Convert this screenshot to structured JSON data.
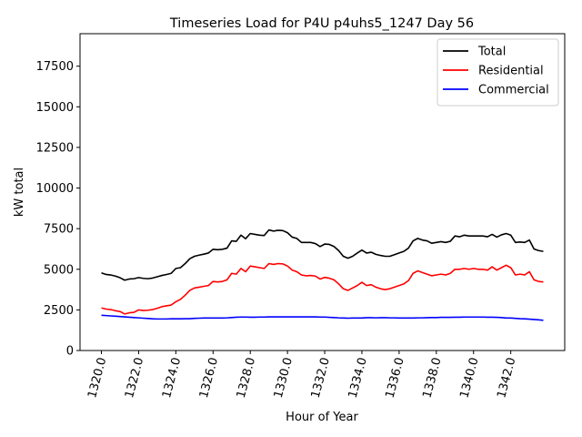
{
  "chart_data": {
    "type": "line",
    "title": "Timeseries Load for P4U p4uhs5_1247  Day 56",
    "xlabel": "Hour of Year",
    "ylabel": "kW total",
    "xlim": [
      1318.85,
      1344.9
    ],
    "ylim": [
      0,
      19500
    ],
    "xticks": [
      1320,
      1322,
      1324,
      1326,
      1328,
      1330,
      1332,
      1334,
      1336,
      1338,
      1340,
      1342
    ],
    "xtick_labels": [
      "1320.0",
      "1322.0",
      "1324.0",
      "1326.0",
      "1328.0",
      "1330.0",
      "1332.0",
      "1334.0",
      "1336.0",
      "1338.0",
      "1340.0",
      "1342.0"
    ],
    "yticks": [
      0,
      2500,
      5000,
      7500,
      10000,
      12500,
      15000,
      17500
    ],
    "ytick_labels": [
      "0",
      "2500",
      "5000",
      "7500",
      "10000",
      "12500",
      "15000",
      "17500"
    ],
    "legend_position": "upper right",
    "x": [
      1320.0,
      1320.25,
      1320.5,
      1320.75,
      1321.0,
      1321.25,
      1321.5,
      1321.75,
      1322.0,
      1322.25,
      1322.5,
      1322.75,
      1323.0,
      1323.25,
      1323.5,
      1323.75,
      1324.0,
      1324.25,
      1324.5,
      1324.75,
      1325.0,
      1325.25,
      1325.5,
      1325.75,
      1326.0,
      1326.25,
      1326.5,
      1326.75,
      1327.0,
      1327.25,
      1327.5,
      1327.75,
      1328.0,
      1328.25,
      1328.5,
      1328.75,
      1329.0,
      1329.25,
      1329.5,
      1329.75,
      1330.0,
      1330.25,
      1330.5,
      1330.75,
      1331.0,
      1331.25,
      1331.5,
      1331.75,
      1332.0,
      1332.25,
      1332.5,
      1332.75,
      1333.0,
      1333.25,
      1333.5,
      1333.75,
      1334.0,
      1334.25,
      1334.5,
      1334.75,
      1335.0,
      1335.25,
      1335.5,
      1335.75,
      1336.0,
      1336.25,
      1336.5,
      1336.75,
      1337.0,
      1337.25,
      1337.5,
      1337.75,
      1338.0,
      1338.25,
      1338.5,
      1338.75,
      1339.0,
      1339.25,
      1339.5,
      1339.75,
      1340.0,
      1340.25,
      1340.5,
      1340.75,
      1341.0,
      1341.25,
      1341.5,
      1341.75,
      1342.0,
      1342.25,
      1342.5,
      1342.75,
      1343.0,
      1343.25,
      1343.5,
      1343.75
    ],
    "series": [
      {
        "name": "Total",
        "color": "#000000",
        "values": [
          4780,
          4680,
          4650,
          4580,
          4480,
          4330,
          4400,
          4420,
          4490,
          4440,
          4420,
          4460,
          4540,
          4620,
          4680,
          4750,
          5050,
          5100,
          5350,
          5650,
          5800,
          5870,
          5930,
          6000,
          6230,
          6200,
          6230,
          6300,
          6750,
          6720,
          7100,
          6880,
          7200,
          7150,
          7100,
          7080,
          7420,
          7350,
          7400,
          7380,
          7250,
          6980,
          6900,
          6650,
          6650,
          6650,
          6580,
          6400,
          6550,
          6530,
          6400,
          6150,
          5800,
          5680,
          5800,
          6000,
          6180,
          6000,
          6050,
          5920,
          5850,
          5800,
          5800,
          5900,
          6000,
          6100,
          6300,
          6750,
          6900,
          6800,
          6750,
          6600,
          6650,
          6700,
          6650,
          6720,
          7050,
          7000,
          7100,
          7050,
          7050,
          7050,
          7050,
          7000,
          7150,
          6980,
          7120,
          7200,
          7100,
          6650,
          6680,
          6650,
          6800,
          6250,
          6150,
          6100
        ]
      },
      {
        "name": "Residential",
        "color": "#ff0000",
        "values": [
          2620,
          2550,
          2520,
          2450,
          2400,
          2250,
          2320,
          2350,
          2500,
          2460,
          2480,
          2520,
          2600,
          2700,
          2750,
          2800,
          3000,
          3150,
          3400,
          3700,
          3850,
          3900,
          3950,
          4000,
          4250,
          4220,
          4250,
          4350,
          4750,
          4700,
          5050,
          4850,
          5200,
          5150,
          5100,
          5050,
          5350,
          5300,
          5350,
          5330,
          5200,
          4950,
          4850,
          4650,
          4600,
          4620,
          4580,
          4400,
          4500,
          4450,
          4350,
          4100,
          3800,
          3700,
          3850,
          4000,
          4200,
          4000,
          4050,
          3900,
          3800,
          3750,
          3800,
          3900,
          4000,
          4100,
          4300,
          4750,
          4900,
          4800,
          4700,
          4600,
          4650,
          4700,
          4650,
          4750,
          5000,
          5000,
          5050,
          5000,
          5050,
          5000,
          5000,
          4950,
          5150,
          4950,
          5100,
          5250,
          5100,
          4650,
          4700,
          4650,
          4850,
          4350,
          4250,
          4220
        ]
      },
      {
        "name": "Commercial",
        "color": "#0000ff",
        "values": [
          2170,
          2150,
          2130,
          2110,
          2090,
          2070,
          2050,
          2030,
          2010,
          1990,
          1970,
          1950,
          1940,
          1940,
          1940,
          1950,
          1950,
          1950,
          1960,
          1960,
          1980,
          1990,
          2000,
          2000,
          2000,
          2000,
          2000,
          2010,
          2030,
          2050,
          2060,
          2060,
          2050,
          2050,
          2060,
          2060,
          2070,
          2070,
          2070,
          2070,
          2070,
          2070,
          2070,
          2070,
          2070,
          2070,
          2070,
          2060,
          2060,
          2040,
          2030,
          2010,
          2000,
          1990,
          2000,
          2000,
          2000,
          2020,
          2020,
          2010,
          2020,
          2020,
          2010,
          2010,
          2000,
          2000,
          2000,
          2000,
          2010,
          2010,
          2020,
          2030,
          2030,
          2040,
          2040,
          2040,
          2050,
          2050,
          2060,
          2060,
          2060,
          2060,
          2060,
          2050,
          2050,
          2040,
          2030,
          2000,
          2000,
          1980,
          1960,
          1950,
          1930,
          1910,
          1890,
          1860
        ]
      }
    ]
  }
}
